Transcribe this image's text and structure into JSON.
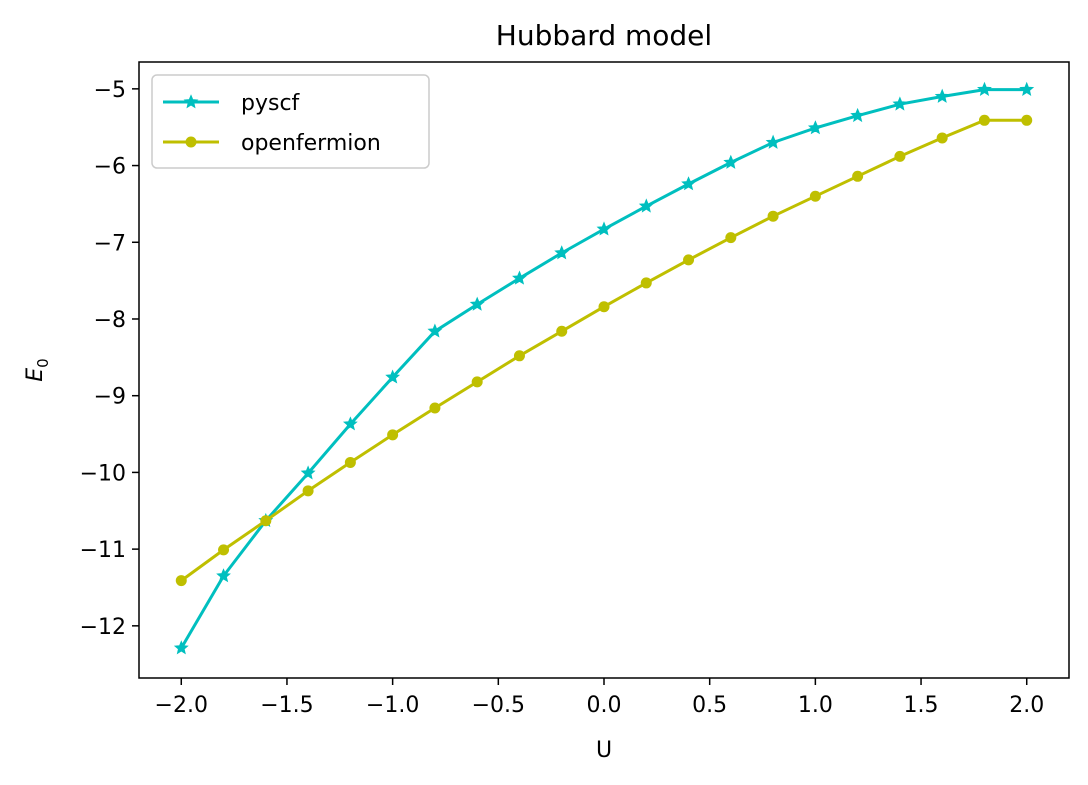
{
  "chart_data": {
    "type": "line",
    "title": "Hubbard model",
    "xlabel": "U",
    "ylabel": "E",
    "ylabel_subscript": "0",
    "xlim": [
      -2.2,
      2.2
    ],
    "ylim": [
      -12.68,
      -4.65
    ],
    "xticks": [
      -2.0,
      -1.5,
      -1.0,
      -0.5,
      0.0,
      0.5,
      1.0,
      1.5,
      2.0
    ],
    "xtick_labels": [
      "−2.0",
      "−1.5",
      "−1.0",
      "−0.5",
      "0.0",
      "0.5",
      "1.0",
      "1.5",
      "2.0"
    ],
    "yticks": [
      -12,
      -11,
      -10,
      -9,
      -8,
      -7,
      -6,
      -5
    ],
    "ytick_labels": [
      "−12",
      "−11",
      "−10",
      "−9",
      "−8",
      "−7",
      "−6",
      "−5"
    ],
    "grid": false,
    "legend_position": "top-left",
    "x": [
      -2.0,
      -1.8,
      -1.6,
      -1.4,
      -1.2,
      -1.0,
      -0.8,
      -0.6,
      -0.4,
      -0.2,
      0.0,
      0.2,
      0.4,
      0.6,
      0.8,
      1.0,
      1.2,
      1.4,
      1.6,
      1.8,
      2.0
    ],
    "series": [
      {
        "name": "pyscf",
        "color": "#00bfbf",
        "marker": "star",
        "values": [
          -12.29,
          -11.35,
          -10.63,
          -10.01,
          -9.37,
          -8.76,
          -8.16,
          -7.81,
          -7.47,
          -7.14,
          -6.83,
          -6.53,
          -6.24,
          -5.96,
          -5.7,
          -5.51,
          -5.35,
          -5.2,
          -5.1,
          -5.01,
          -5.01
        ]
      },
      {
        "name": "openfermion",
        "color": "#bfbf00",
        "marker": "circle",
        "values": [
          -11.41,
          -11.01,
          -10.63,
          -10.24,
          -9.87,
          -9.51,
          -9.16,
          -8.82,
          -8.48,
          -8.16,
          -7.84,
          -7.53,
          -7.23,
          -6.94,
          -6.66,
          -6.4,
          -6.14,
          -5.88,
          -5.64,
          -5.41,
          -5.41
        ]
      }
    ]
  }
}
